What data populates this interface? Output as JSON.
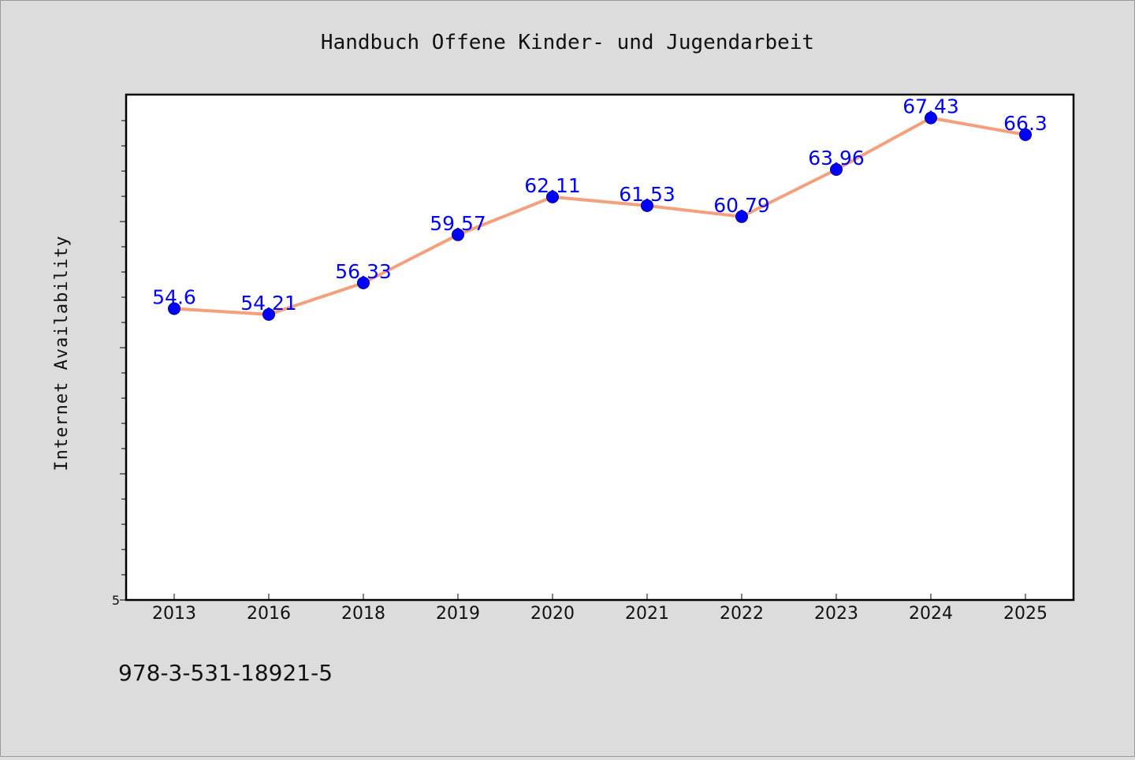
{
  "chart_data": {
    "type": "line",
    "title": "Handbuch Offene Kinder- und Jugendarbeit",
    "xlabel": "",
    "ylabel": "Internet Availability",
    "categories": [
      "2013",
      "2016",
      "2018",
      "2019",
      "2020",
      "2021",
      "2022",
      "2023",
      "2024",
      "2025"
    ],
    "series": [
      {
        "values": [
          54.6,
          54.21,
          56.33,
          59.57,
          62.11,
          61.53,
          60.79,
          63.96,
          67.43,
          66.3
        ],
        "data_labels": [
          "54.6",
          "54.21",
          "56.33",
          "59.57",
          "62.11",
          "61.53",
          "60.79",
          "63.96",
          "67.43",
          "66.3"
        ]
      }
    ],
    "ylim": [
      35,
      69
    ],
    "ytick_labels": [
      "5"
    ],
    "grid": false,
    "legend": "none",
    "colors": {
      "line": "#f4a07c",
      "marker": "#0000ff",
      "label": "#0000ff",
      "background": "#dcdcdc",
      "plot_background": "#ffffff"
    }
  },
  "footer_text": "978-3-531-18921-5"
}
